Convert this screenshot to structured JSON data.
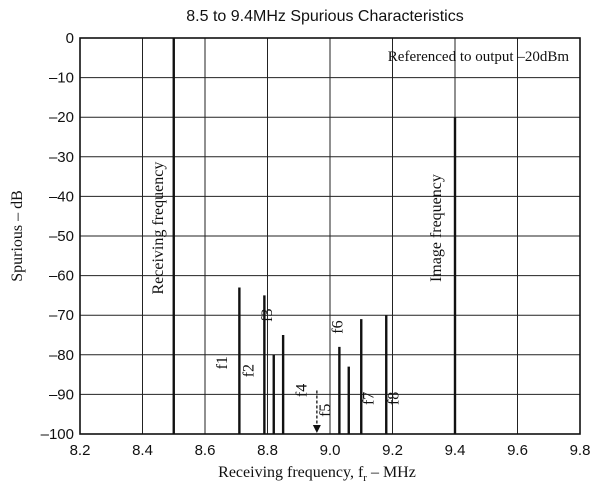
{
  "chart_data": {
    "type": "bar",
    "title": "8.5 to 9.4MHz Spurious Characteristics",
    "xlabel_main": "Receiving frequency, f",
    "xlabel_sub": "r",
    "xlabel_unit": "  –   MHz",
    "ylabel": "Spurious   –   dB",
    "note": "Referenced to output –20dBm",
    "xlim": [
      8.2,
      9.8
    ],
    "ylim": [
      -100,
      0
    ],
    "x_ticks": [
      "8.2",
      "8.4",
      "8.6",
      "8.8",
      "9.0",
      "9.2",
      "9.4",
      "9.6",
      "9.8"
    ],
    "y_ticks": [
      "0",
      "–10",
      "–20",
      "–30",
      "–40",
      "–50",
      "–60",
      "–70",
      "–80",
      "–90",
      "–100"
    ],
    "grid": true,
    "spikes": [
      {
        "x": 8.5,
        "value": 0
      },
      {
        "x": 8.71,
        "value": -63
      },
      {
        "x": 8.79,
        "value": -65
      },
      {
        "x": 8.82,
        "value": -80
      },
      {
        "x": 8.85,
        "value": -75
      },
      {
        "x": 9.03,
        "value": -78
      },
      {
        "x": 9.06,
        "value": -83
      },
      {
        "x": 9.1,
        "value": -71
      },
      {
        "x": 9.18,
        "value": -70
      },
      {
        "x": 9.4,
        "value": -20
      }
    ],
    "spike_labels": [
      {
        "text": "f1",
        "x": 8.67,
        "y": -82
      },
      {
        "text": "f2",
        "x": 8.755,
        "y": -84
      },
      {
        "text": "f3",
        "x": 8.815,
        "y": -70
      },
      {
        "text": "f4",
        "x": 8.925,
        "y": -89
      },
      {
        "text": "f5",
        "x": 9.0,
        "y": -94
      },
      {
        "text": "f6",
        "x": 9.04,
        "y": -73
      },
      {
        "text": "f7",
        "x": 9.14,
        "y": -91
      },
      {
        "text": "f8",
        "x": 9.22,
        "y": -91
      }
    ],
    "arrow": {
      "x": 8.958,
      "y_from": -89,
      "y_to": -100
    },
    "annotations": [
      {
        "text": "Receiving frequency",
        "x": 8.465,
        "y": -48
      },
      {
        "text": "Image frequency",
        "x": 9.355,
        "y": -48
      }
    ]
  }
}
